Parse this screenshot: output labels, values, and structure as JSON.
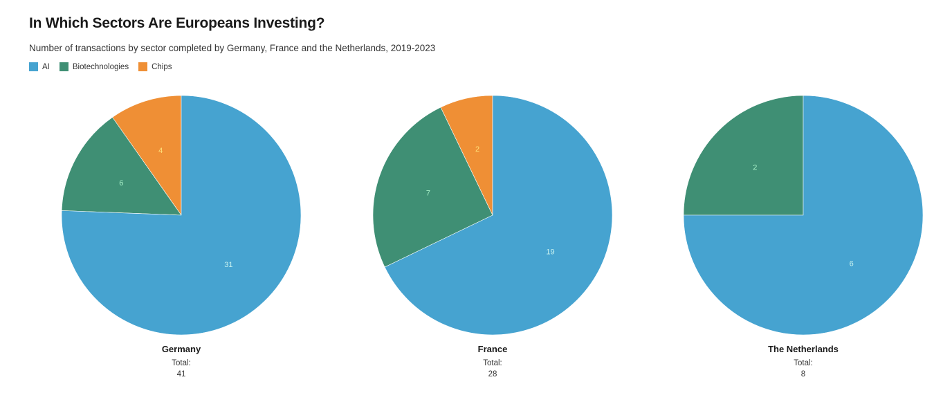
{
  "title": "In Which Sectors Are Europeans Investing?",
  "subtitle": "Number of transactions by sector completed by Germany, France and the Netherlands, 2019-2023",
  "legend": [
    {
      "label": "AI",
      "color": "#46a3d0"
    },
    {
      "label": "Biotechnologies",
      "color": "#3f8f74"
    },
    {
      "label": "Chips",
      "color": "#ef8f35"
    }
  ],
  "chart_data": [
    {
      "type": "pie",
      "name": "Germany",
      "total_label": "Total:",
      "total": "41",
      "slices": [
        {
          "label": "Chips",
          "value": 4,
          "color": "#ef8f35",
          "label_color": "#ffe27a"
        },
        {
          "label": "Biotechnologies",
          "value": 6,
          "color": "#3f8f74",
          "label_color": "#a8f0c8"
        },
        {
          "label": "AI",
          "value": 31,
          "color": "#46a3d0",
          "label_color": "#c8f2ef"
        }
      ]
    },
    {
      "type": "pie",
      "name": "France",
      "total_label": "Total:",
      "total": "28",
      "slices": [
        {
          "label": "Chips",
          "value": 2,
          "color": "#ef8f35",
          "label_color": "#ffe27a"
        },
        {
          "label": "Biotechnologies",
          "value": 7,
          "color": "#3f8f74",
          "label_color": "#a8f0c8"
        },
        {
          "label": "AI",
          "value": 19,
          "color": "#46a3d0",
          "label_color": "#c8f2ef"
        }
      ]
    },
    {
      "type": "pie",
      "name": "The Netherlands",
      "total_label": "Total:",
      "total": "8",
      "slices": [
        {
          "label": "Biotechnologies",
          "value": 2,
          "color": "#3f8f74",
          "label_color": "#a8f0c8"
        },
        {
          "label": "AI",
          "value": 6,
          "color": "#46a3d0",
          "label_color": "#c8f2ef"
        }
      ]
    }
  ]
}
